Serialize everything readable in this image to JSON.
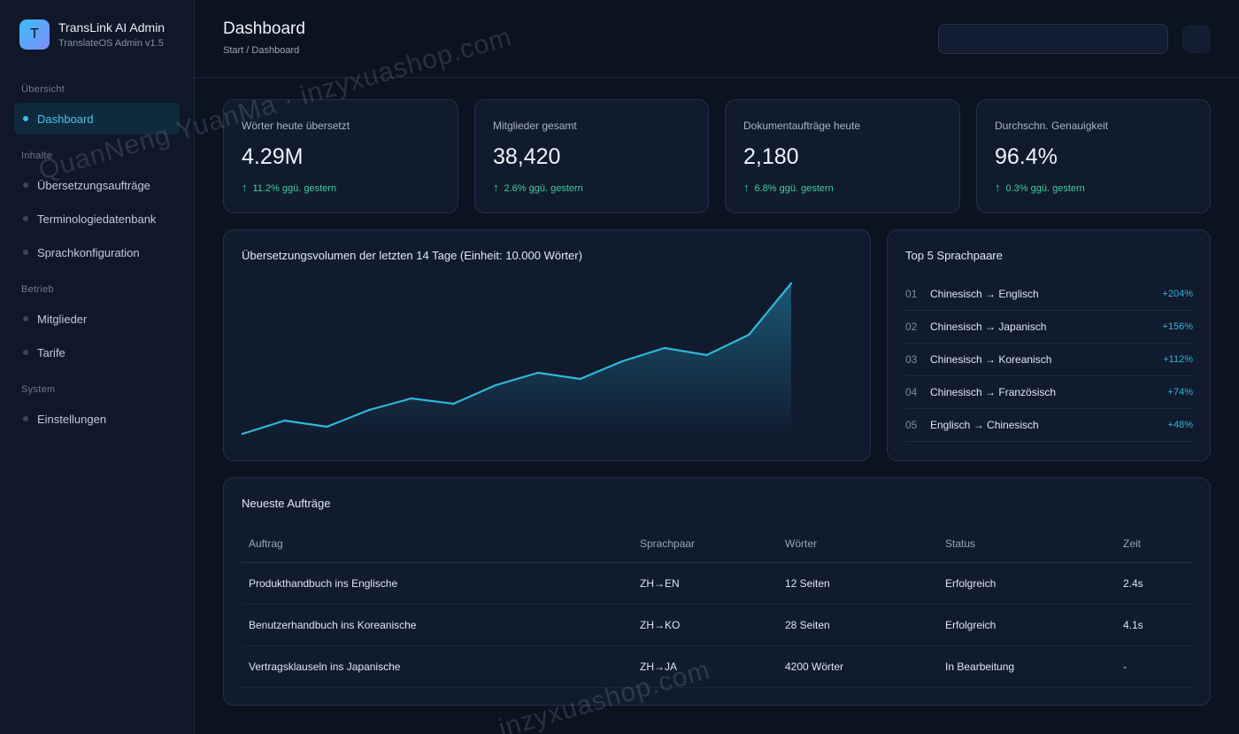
{
  "brand": {
    "logo_letter": "T",
    "title": "TransLink AI Admin",
    "subtitle": "TranslateOS Admin v1.5"
  },
  "sidebar": {
    "sections": [
      {
        "label": "Übersicht"
      },
      {
        "label": "Inhalte"
      },
      {
        "label": "Betrieb"
      },
      {
        "label": "System"
      }
    ],
    "items": [
      {
        "label": "Dashboard",
        "active": true
      },
      {
        "label": "Übersetzungsaufträge"
      },
      {
        "label": "Terminologiedatenbank"
      },
      {
        "label": "Sprachkonfiguration"
      },
      {
        "label": "Mitglieder"
      },
      {
        "label": "Tarife"
      },
      {
        "label": "Einstellungen"
      }
    ]
  },
  "header": {
    "title": "Dashboard",
    "breadcrumb": "Start / Dashboard",
    "search_value": ""
  },
  "stats": [
    {
      "label": "Wörter heute übersetzt",
      "value": "4.29M",
      "change": "11.2% ggü. gestern"
    },
    {
      "label": "Mitglieder gesamt",
      "value": "38,420",
      "change": "2.6% ggü. gestern"
    },
    {
      "label": "Dokumentaufträge heute",
      "value": "2,180",
      "change": "6.8% ggü. gestern"
    },
    {
      "label": "Durchschn. Genauigkeit",
      "value": "96.4%",
      "change": "0.3% ggü. gestern"
    }
  ],
  "volume_panel": {
    "title": "Übersetzungsvolumen der letzten 14 Tage (Einheit: 10.000 Wörter)"
  },
  "chart_data": {
    "type": "area",
    "title": "Übersetzungsvolumen der letzten 14 Tage (Einheit: 10.000 Wörter)",
    "x": [
      1,
      2,
      3,
      4,
      5,
      6,
      7,
      8,
      9,
      10,
      11,
      12,
      13,
      14
    ],
    "values": [
      0,
      15,
      8,
      27,
      40,
      34,
      55,
      69,
      62,
      82,
      97,
      89,
      112,
      170
    ],
    "ylim": [
      0,
      175
    ],
    "grid": false,
    "axes_visible": false,
    "colors": {
      "line": "#2fb8d8",
      "fill": "#1d6a8c"
    }
  },
  "pairs_panel": {
    "title": "Top 5 Sprachpaare",
    "items": [
      {
        "index": "01",
        "name": "Chinesisch → Englisch",
        "pct": "+204%"
      },
      {
        "index": "02",
        "name": "Chinesisch → Japanisch",
        "pct": "+156%"
      },
      {
        "index": "03",
        "name": "Chinesisch → Koreanisch",
        "pct": "+112%"
      },
      {
        "index": "04",
        "name": "Chinesisch → Französisch",
        "pct": "+74%"
      },
      {
        "index": "05",
        "name": "Englisch → Chinesisch",
        "pct": "+48%"
      }
    ]
  },
  "orders_panel": {
    "title": "Neueste Aufträge",
    "columns": [
      "Auftrag",
      "Sprachpaar",
      "Wörter",
      "Status",
      "Zeit"
    ],
    "rows": [
      {
        "task": "Produkthandbuch ins Englische",
        "pair": "ZH→EN",
        "words": "12 Seiten",
        "status": "Erfolgreich",
        "status_type": "ok",
        "time": "2.4s"
      },
      {
        "task": "Benutzerhandbuch ins Koreanische",
        "pair": "ZH→KO",
        "words": "28 Seiten",
        "status": "Erfolgreich",
        "status_type": "ok",
        "time": "4.1s"
      },
      {
        "task": "Vertragsklauseln ins Japanische",
        "pair": "ZH→JA",
        "words": "4200 Wörter",
        "status": "In Bearbeitung",
        "status_type": "progress",
        "time": "-"
      }
    ]
  },
  "watermarks": [
    "QuanNeng YuanMa · inzyxuashop.com",
    "inzyxuashop.com"
  ]
}
